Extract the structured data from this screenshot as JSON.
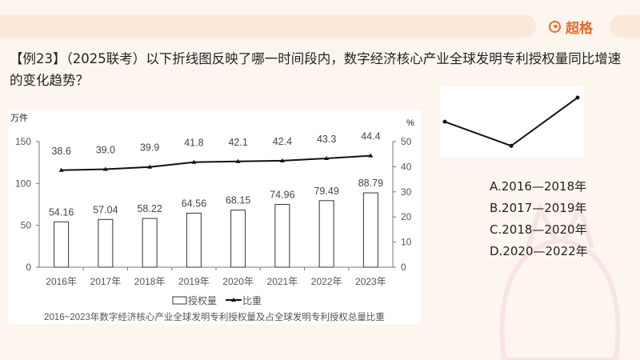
{
  "header": {
    "brand": "超格",
    "brand_color": "#ee6a2a",
    "brand_icon": "logo-g-icon"
  },
  "question": {
    "text": "【例23】（2025联考）以下折线图反映了哪一时间段内，数字经济核心产业全球发明专利授权量同比增速的变化趋势？"
  },
  "options": [
    {
      "label": "A.2016—2018年"
    },
    {
      "label": "B.2017—2019年"
    },
    {
      "label": "C.2018—2020年"
    },
    {
      "label": "D.2020—2022年"
    }
  ],
  "chart_data": [
    {
      "type": "bar+line",
      "title": "2016~2023年数字经济核心产业全球发明专利授权量及占全球发明专利授权总量比重",
      "categories": [
        "2016年",
        "2017年",
        "2018年",
        "2019年",
        "2020年",
        "2021年",
        "2022年",
        "2023年"
      ],
      "left_axis": {
        "unit": "万件",
        "range": [
          0,
          150
        ],
        "ticks": [
          "0",
          "50",
          "100",
          "150"
        ]
      },
      "right_axis": {
        "unit": "%",
        "range": [
          0,
          50
        ],
        "ticks": [
          "0",
          "10",
          "20",
          "30",
          "40",
          "50"
        ]
      },
      "series": [
        {
          "name": "授权量",
          "kind": "bar",
          "axis": "left",
          "values": [
            54.16,
            57.04,
            58.22,
            64.56,
            68.15,
            74.96,
            79.49,
            88.79
          ],
          "labels": [
            "54.16",
            "57.04",
            "58.22",
            "64.56",
            "68.15",
            "74.96",
            "79.49",
            "88.79"
          ]
        },
        {
          "name": "比重",
          "kind": "line",
          "axis": "right",
          "values": [
            38.6,
            39.0,
            39.9,
            41.8,
            42.1,
            42.4,
            43.3,
            44.4
          ],
          "labels": [
            "38.6",
            "39.0",
            "39.9",
            "41.8",
            "42.1",
            "42.4",
            "43.3",
            "44.4"
          ]
        }
      ],
      "legend": "bottom",
      "grid": false
    },
    {
      "type": "line",
      "description_shown": "unlabeled sketch",
      "values": [
        0.55,
        0.1,
        1.0
      ]
    }
  ]
}
